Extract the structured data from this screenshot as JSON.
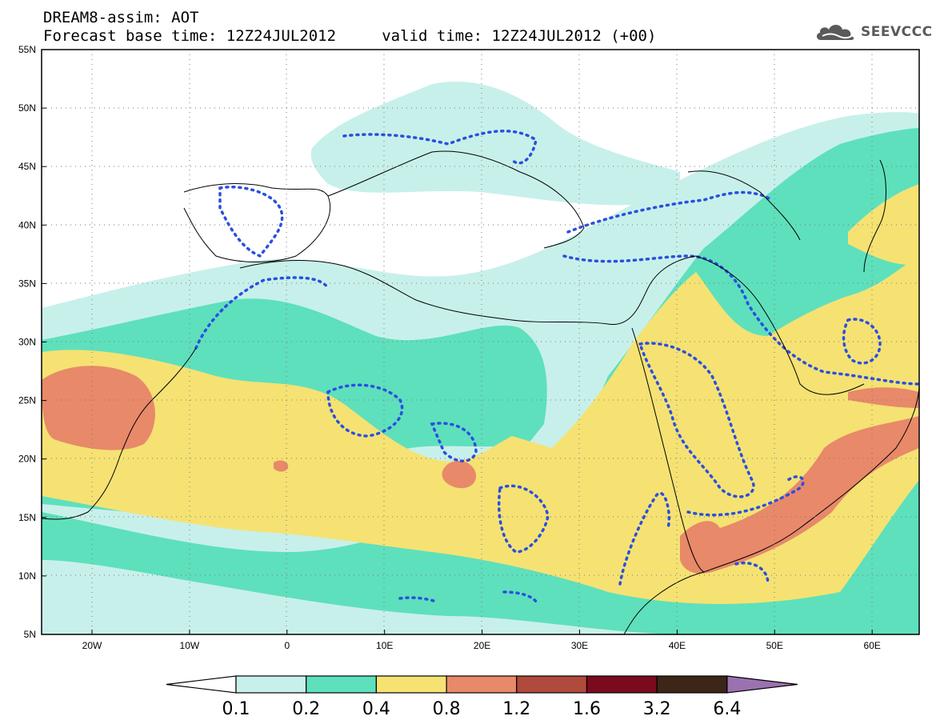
{
  "title": {
    "line1": "DREAM8-assim: AOT",
    "line2": "Forecast base time: 12Z24JUL2012     valid time: 12Z24JUL2012 (+00)"
  },
  "logo": {
    "text": "SEEVCCC"
  },
  "axes": {
    "lat_labels": [
      "55N",
      "50N",
      "45N",
      "40N",
      "35N",
      "30N",
      "25N",
      "20N",
      "15N",
      "10N",
      "5N"
    ],
    "lon_labels": [
      "20W",
      "10W",
      "0",
      "10E",
      "20E",
      "30E",
      "40E",
      "50E",
      "60E"
    ]
  },
  "colorbar": {
    "levels": [
      "0.1",
      "0.2",
      "0.4",
      "0.8",
      "1.2",
      "1.6",
      "3.2",
      "6.4"
    ],
    "colors": [
      "#ffffff",
      "#c8f0ea",
      "#5ee0bc",
      "#f5e273",
      "#e8896a",
      "#b04a3c",
      "#7c0a1e",
      "#3c2618",
      "#9b72b0"
    ]
  }
}
